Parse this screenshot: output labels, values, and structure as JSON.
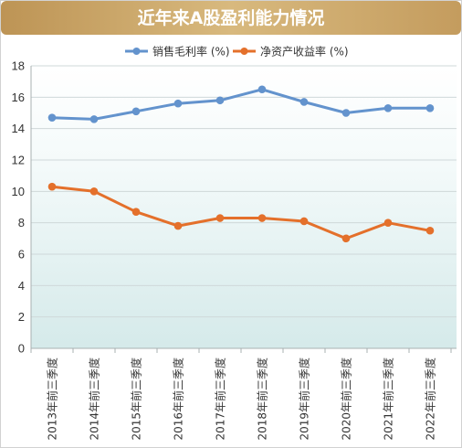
{
  "chart_data": {
    "type": "line",
    "title": "近年来A股盈利能力情况",
    "xlabel": "",
    "ylabel": "",
    "categories": [
      "2013年前三季度",
      "2014年前三季度",
      "2015年前三季度",
      "2016年前三季度",
      "2017年前三季度",
      "2018年前三季度",
      "2019年前三季度",
      "2020年前三季度",
      "2021年前三季度",
      "2022年前三季度"
    ],
    "series": [
      {
        "name": "销售毛利率 (%)",
        "color": "#6393cd",
        "values": [
          14.7,
          14.6,
          15.1,
          15.6,
          15.8,
          16.5,
          15.7,
          15.0,
          15.3,
          15.3
        ]
      },
      {
        "name": "净资产收益率 (%)",
        "color": "#e4702b",
        "values": [
          10.3,
          10.0,
          8.7,
          7.8,
          8.3,
          8.3,
          8.1,
          7.0,
          8.0,
          7.5
        ]
      }
    ],
    "ylim": [
      0,
      18
    ],
    "yticks": [
      0,
      2,
      4,
      6,
      8,
      10,
      12,
      14,
      16,
      18
    ],
    "grid": true,
    "legend": "top"
  },
  "colors": {
    "banner": "#c9a366",
    "plot_background_top": "#ffffff",
    "plot_background_bottom": "#d5eaea",
    "gridline": "#cfd8d9",
    "axis": "#a9b1b2"
  }
}
